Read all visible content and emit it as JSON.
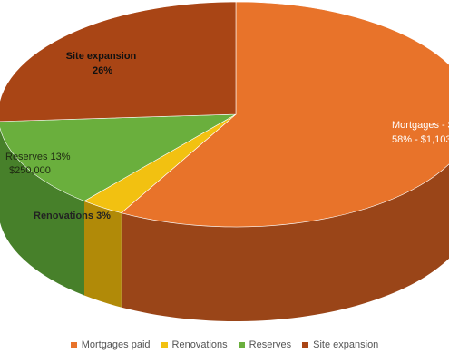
{
  "chart_data": {
    "type": "pie",
    "style": "3d",
    "slices": [
      {
        "name": "Mortgages paid",
        "value": 58,
        "color": "#e8732a",
        "side_color": "#9a4518",
        "label_lines": [
          "Mortgages - $",
          "58% - $1,103"
        ]
      },
      {
        "name": "Renovations",
        "value": 3,
        "color": "#f2c111",
        "side_color": "#b18a08",
        "label_lines": [
          "Renovations 3%"
        ]
      },
      {
        "name": "Reserves",
        "value": 13,
        "color": "#6aaf3d",
        "side_color": "#47802a",
        "label_lines": [
          "Reserves 13%",
          "$250,000"
        ]
      },
      {
        "name": "Site expansion",
        "value": 26,
        "color": "#a94515",
        "side_color": "#6e2a0b",
        "label_lines": [
          "Site expansion",
          "26%"
        ]
      }
    ],
    "legend_placement": "bottom"
  }
}
